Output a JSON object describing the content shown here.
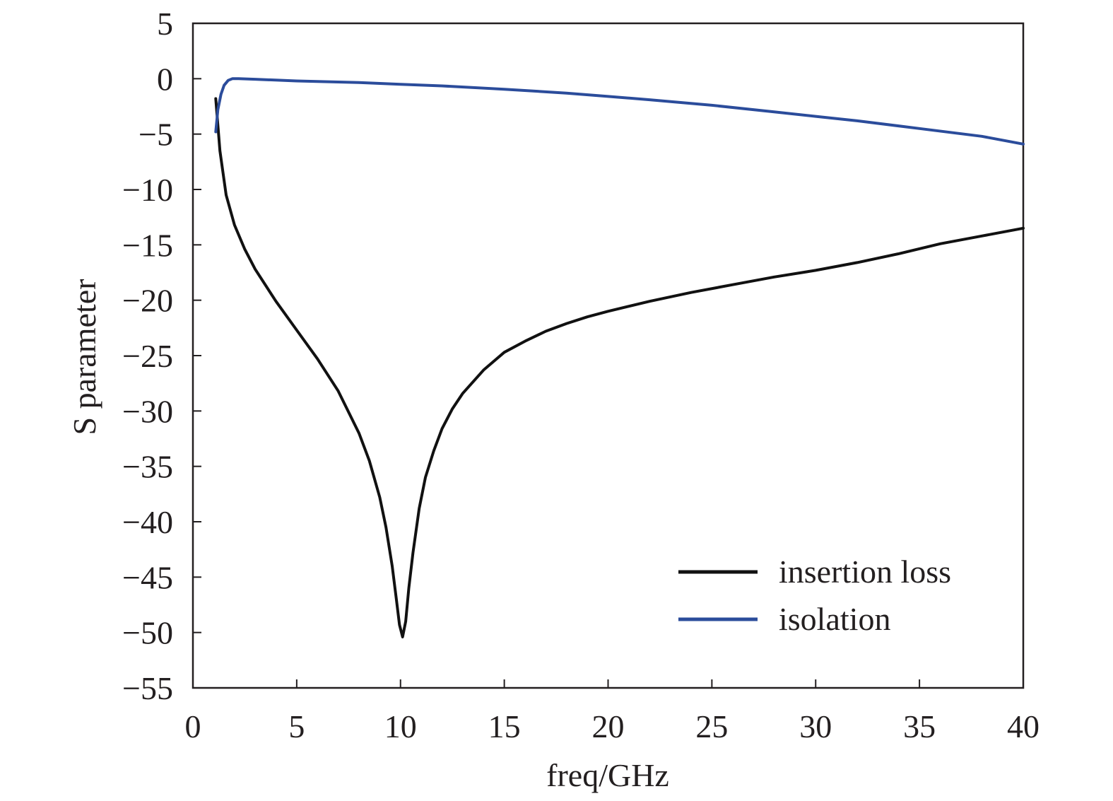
{
  "chart_data": {
    "type": "line",
    "title": "",
    "xlabel": "freq/GHz",
    "ylabel": "S parameter",
    "xlim": [
      0,
      40
    ],
    "ylim": [
      -55,
      5
    ],
    "xticks": [
      0,
      5,
      10,
      15,
      20,
      25,
      30,
      35,
      40
    ],
    "yticks": [
      5,
      0,
      -5,
      -10,
      -15,
      -20,
      -25,
      -30,
      -35,
      -40,
      -45,
      -50,
      -55
    ],
    "xtick_labels": [
      "0",
      "5",
      "10",
      "15",
      "20",
      "25",
      "30",
      "35",
      "40"
    ],
    "ytick_labels": [
      "5",
      "0",
      "−5",
      "−10",
      "−15",
      "−20",
      "−25",
      "−30",
      "−35",
      "−40",
      "−45",
      "−50",
      "−55"
    ],
    "grid": false,
    "legend_position": "lower-right",
    "series": [
      {
        "name": "insertion loss",
        "color": "#111111",
        "x": [
          1.1,
          1.3,
          1.6,
          2,
          2.5,
          3,
          4,
          5,
          6,
          7,
          8,
          8.5,
          9,
          9.3,
          9.6,
          9.8,
          9.95,
          10.1,
          10.25,
          10.4,
          10.6,
          10.9,
          11.2,
          11.6,
          12,
          12.5,
          13,
          14,
          15,
          16,
          17,
          18,
          19,
          20,
          22,
          24,
          26,
          28,
          30,
          32,
          34,
          36,
          38,
          40
        ],
        "y": [
          -1.8,
          -6.5,
          -10.5,
          -13.2,
          -15.4,
          -17.2,
          -20.1,
          -22.7,
          -25.3,
          -28.2,
          -32.0,
          -34.5,
          -37.8,
          -40.5,
          -44.0,
          -47.0,
          -49.3,
          -50.4,
          -49.0,
          -46.0,
          -42.8,
          -38.8,
          -36.0,
          -33.6,
          -31.6,
          -29.8,
          -28.4,
          -26.3,
          -24.7,
          -23.7,
          -22.8,
          -22.1,
          -21.5,
          -21.0,
          -20.1,
          -19.3,
          -18.6,
          -17.9,
          -17.3,
          -16.6,
          -15.8,
          -14.9,
          -14.2,
          -13.5
        ]
      },
      {
        "name": "isolation",
        "color": "#2b4c9b",
        "x": [
          1.1,
          1.2,
          1.35,
          1.5,
          1.7,
          1.9,
          2.2,
          3,
          5,
          8,
          10,
          12,
          15,
          18,
          20,
          22,
          25,
          28,
          30,
          32,
          35,
          38,
          40
        ],
        "y": [
          -4.8,
          -2.8,
          -1.4,
          -0.6,
          -0.15,
          0.0,
          0.0,
          -0.05,
          -0.2,
          -0.35,
          -0.5,
          -0.65,
          -0.95,
          -1.3,
          -1.6,
          -1.9,
          -2.4,
          -3.0,
          -3.4,
          -3.8,
          -4.5,
          -5.2,
          -5.9
        ]
      }
    ]
  }
}
